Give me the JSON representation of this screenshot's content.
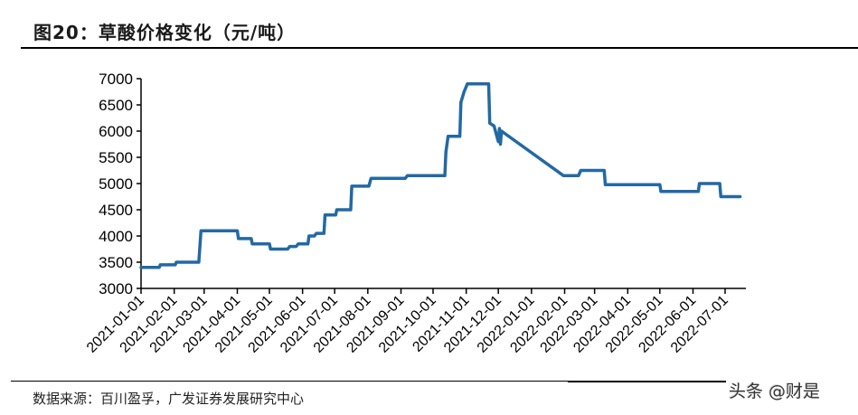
{
  "header": {
    "title": "图20：草酸价格变化（元/吨）"
  },
  "footer": {
    "source": "数据来源：百川盈孚，广发证券发展研究中心",
    "watermark": "头条 @财是"
  },
  "colors": {
    "line": "#2369A4",
    "axis": "#000000",
    "text": "#000000"
  },
  "chart_data": {
    "type": "line",
    "title": "草酸价格变化（元/吨）",
    "xlabel": "",
    "ylabel": "元/吨",
    "ylim": [
      3000,
      7000
    ],
    "yticks": [
      3000,
      3500,
      4000,
      4500,
      5000,
      5500,
      6000,
      6500,
      7000
    ],
    "xticks": [
      "2021-01-01",
      "2021-02-01",
      "2021-03-01",
      "2021-04-01",
      "2021-05-01",
      "2021-06-01",
      "2021-07-01",
      "2021-08-01",
      "2021-09-01",
      "2021-10-01",
      "2021-11-01",
      "2021-12-01",
      "2022-01-01",
      "2022-02-01",
      "2022-03-01",
      "2022-04-01",
      "2022-05-01",
      "2022-06-01",
      "2022-07-01"
    ],
    "grid": false,
    "legend": null,
    "series": [
      {
        "name": "草酸价格",
        "points": [
          [
            "2021-01-01",
            3400
          ],
          [
            "2021-01-18",
            3400
          ],
          [
            "2021-01-19",
            3450
          ],
          [
            "2021-02-02",
            3450
          ],
          [
            "2021-02-03",
            3500
          ],
          [
            "2021-02-24",
            3500
          ],
          [
            "2021-02-26",
            4100
          ],
          [
            "2021-04-01",
            4100
          ],
          [
            "2021-04-02",
            3950
          ],
          [
            "2021-04-14",
            3950
          ],
          [
            "2021-04-15",
            3850
          ],
          [
            "2021-05-01",
            3850
          ],
          [
            "2021-05-02",
            3750
          ],
          [
            "2021-05-18",
            3750
          ],
          [
            "2021-05-20",
            3800
          ],
          [
            "2021-05-26",
            3800
          ],
          [
            "2021-05-28",
            3850
          ],
          [
            "2021-06-06",
            3850
          ],
          [
            "2021-06-07",
            4000
          ],
          [
            "2021-06-12",
            4000
          ],
          [
            "2021-06-14",
            4050
          ],
          [
            "2021-06-21",
            4050
          ],
          [
            "2021-06-22",
            4400
          ],
          [
            "2021-07-02",
            4400
          ],
          [
            "2021-07-03",
            4500
          ],
          [
            "2021-07-16",
            4500
          ],
          [
            "2021-07-17",
            4950
          ],
          [
            "2021-08-02",
            4950
          ],
          [
            "2021-08-04",
            5100
          ],
          [
            "2021-09-05",
            5100
          ],
          [
            "2021-09-07",
            5150
          ],
          [
            "2021-10-12",
            5150
          ],
          [
            "2021-10-13",
            5600
          ],
          [
            "2021-10-15",
            5900
          ],
          [
            "2021-10-26",
            5900
          ],
          [
            "2021-10-27",
            6550
          ],
          [
            "2021-10-30",
            6750
          ],
          [
            "2021-11-02",
            6900
          ],
          [
            "2021-11-22",
            6900
          ],
          [
            "2021-11-23",
            6150
          ],
          [
            "2021-11-27",
            6100
          ],
          [
            "2021-11-29",
            5950
          ],
          [
            "2021-12-01",
            5800
          ],
          [
            "2021-12-02",
            6050
          ],
          [
            "2021-12-03",
            5750
          ],
          [
            "2021-12-04",
            6000
          ],
          [
            "2022-01-31",
            5150
          ],
          [
            "2022-02-14",
            5150
          ],
          [
            "2022-02-16",
            5250
          ],
          [
            "2022-03-10",
            5250
          ],
          [
            "2022-03-11",
            4980
          ],
          [
            "2022-05-01",
            4980
          ],
          [
            "2022-05-02",
            4850
          ],
          [
            "2022-06-06",
            4850
          ],
          [
            "2022-06-07",
            5000
          ],
          [
            "2022-06-26",
            5000
          ],
          [
            "2022-06-27",
            4750
          ],
          [
            "2022-07-15",
            4750
          ]
        ]
      }
    ]
  }
}
